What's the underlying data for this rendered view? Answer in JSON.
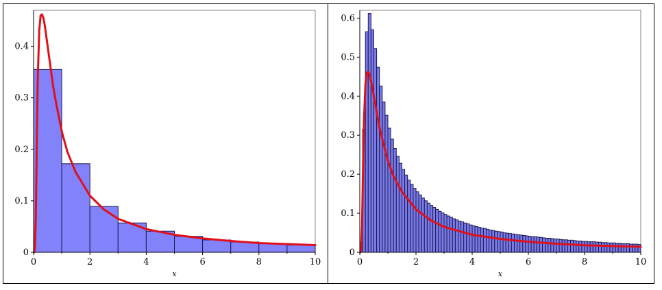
{
  "chart_data": [
    {
      "type": "bar",
      "overlay": "line",
      "xlabel": "x",
      "ylabel": "",
      "xlim": [
        0,
        10
      ],
      "ylim": [
        0,
        0.47
      ],
      "xticks": [
        "0",
        "2",
        "4",
        "6",
        "8",
        "10"
      ],
      "yticks": [
        "0",
        "0.1",
        "0.2",
        "0.3",
        "0.4"
      ],
      "bins": {
        "start": 0,
        "width": 1
      },
      "values": [
        0.355,
        0.172,
        0.089,
        0.057,
        0.041,
        0.031,
        0.024,
        0.02,
        0.017,
        0.014
      ],
      "curve": {
        "x": [
          0.02,
          0.05,
          0.08,
          0.1,
          0.12,
          0.15,
          0.2,
          0.25,
          0.3,
          0.35,
          0.4,
          0.5,
          0.6,
          0.7,
          0.8,
          1.0,
          1.2,
          1.5,
          2.0,
          2.5,
          3.0,
          4.0,
          5.0,
          6.0,
          7.0,
          8.0,
          9.0,
          10.0
        ],
        "y": [
          0.0,
          0.01,
          0.07,
          0.15,
          0.24,
          0.34,
          0.43,
          0.46,
          0.462,
          0.455,
          0.44,
          0.4,
          0.36,
          0.32,
          0.29,
          0.235,
          0.195,
          0.155,
          0.11,
          0.083,
          0.065,
          0.045,
          0.034,
          0.027,
          0.022,
          0.018,
          0.016,
          0.014
        ]
      },
      "colors": {
        "bar_fill": "#8282fa",
        "bar_stroke": "#1a1a50",
        "curve": "#e0101a"
      }
    },
    {
      "type": "bar",
      "overlay": "line",
      "xlabel": "x",
      "ylabel": "",
      "xlim": [
        0,
        10
      ],
      "ylim": [
        0,
        0.62
      ],
      "xticks": [
        "0",
        "2",
        "4",
        "6",
        "8",
        "10"
      ],
      "yticks": [
        "0",
        "0.1",
        "0.2",
        "0.3",
        "0.4",
        "0.5",
        "0.6"
      ],
      "bins": {
        "start": 0,
        "width": 0.1
      },
      "values": [
        0.025,
        0.315,
        0.565,
        0.612,
        0.57,
        0.522,
        0.474,
        0.426,
        0.385,
        0.351,
        0.318,
        0.29,
        0.266,
        0.246,
        0.228,
        0.212,
        0.198,
        0.185,
        0.174,
        0.164,
        0.155,
        0.147,
        0.139,
        0.132,
        0.126,
        0.12,
        0.115,
        0.11,
        0.105,
        0.101,
        0.097,
        0.093,
        0.09,
        0.086,
        0.083,
        0.08,
        0.078,
        0.075,
        0.073,
        0.07,
        0.068,
        0.066,
        0.064,
        0.062,
        0.061,
        0.059,
        0.057,
        0.056,
        0.054,
        0.053,
        0.052,
        0.05,
        0.049,
        0.048,
        0.047,
        0.046,
        0.045,
        0.044,
        0.043,
        0.042,
        0.041,
        0.04,
        0.04,
        0.039,
        0.038,
        0.037,
        0.036,
        0.036,
        0.035,
        0.034,
        0.034,
        0.033,
        0.032,
        0.032,
        0.031,
        0.031,
        0.03,
        0.029,
        0.029,
        0.028,
        0.028,
        0.027,
        0.027,
        0.027,
        0.026,
        0.026,
        0.025,
        0.025,
        0.024,
        0.024,
        0.024,
        0.023,
        0.023,
        0.022,
        0.022,
        0.022,
        0.021,
        0.021,
        0.021,
        0.02
      ],
      "curve": {
        "x": [
          0.02,
          0.05,
          0.08,
          0.1,
          0.12,
          0.15,
          0.2,
          0.25,
          0.3,
          0.35,
          0.4,
          0.5,
          0.6,
          0.7,
          0.8,
          1.0,
          1.2,
          1.5,
          2.0,
          2.5,
          3.0,
          4.0,
          5.0,
          6.0,
          7.0,
          8.0,
          9.0,
          10.0
        ],
        "y": [
          0.0,
          0.01,
          0.07,
          0.15,
          0.24,
          0.34,
          0.43,
          0.46,
          0.462,
          0.455,
          0.44,
          0.4,
          0.36,
          0.32,
          0.29,
          0.235,
          0.195,
          0.155,
          0.11,
          0.083,
          0.065,
          0.045,
          0.034,
          0.027,
          0.022,
          0.018,
          0.016,
          0.014
        ]
      },
      "colors": {
        "bar_fill": "#7a7ae8",
        "bar_stroke": "#1a1a50",
        "curve": "#e0101a"
      }
    }
  ]
}
